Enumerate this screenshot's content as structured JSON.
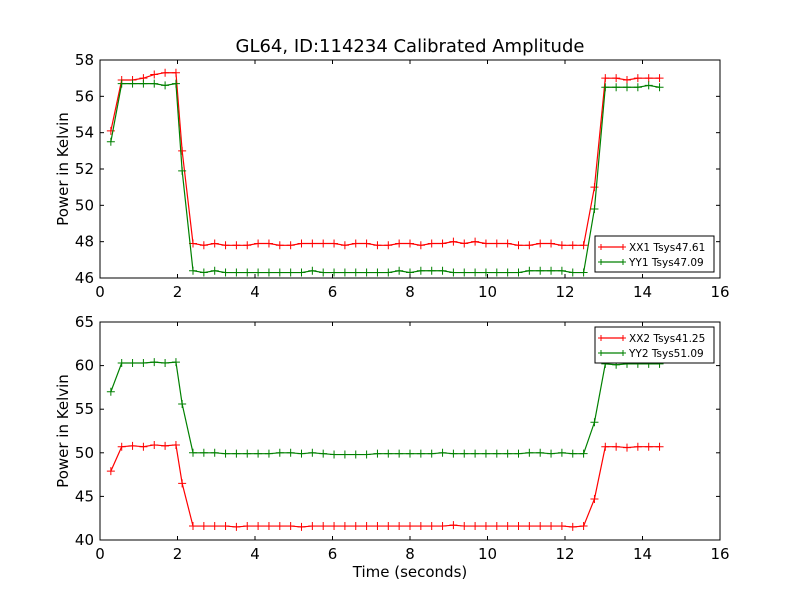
{
  "title": "GL64, ID:114234 Calibrated Amplitude",
  "colors": {
    "xx": "#ff0000",
    "yy": "#008000"
  },
  "chart_data": [
    {
      "type": "line",
      "xlabel": "",
      "ylabel": "Power in Kelvin",
      "xlim": [
        0,
        16
      ],
      "ylim": [
        46,
        58
      ],
      "xticks": [
        0,
        2,
        4,
        6,
        8,
        10,
        12,
        14,
        16
      ],
      "yticks": [
        46,
        48,
        50,
        52,
        54,
        56,
        58
      ],
      "legend_position": "lower-right",
      "series": [
        {
          "name": "XX1 Tsys47.61",
          "color": "#ff0000",
          "x": [
            0.28,
            0.56,
            0.84,
            1.12,
            1.4,
            1.68,
            1.96,
            2.12,
            2.4,
            2.68,
            2.96,
            3.24,
            3.52,
            3.8,
            4.08,
            4.36,
            4.64,
            4.92,
            5.2,
            5.48,
            5.76,
            6.04,
            6.32,
            6.6,
            6.88,
            7.16,
            7.44,
            7.72,
            8.0,
            8.28,
            8.56,
            8.84,
            9.12,
            9.4,
            9.68,
            9.96,
            10.24,
            10.52,
            10.8,
            11.08,
            11.36,
            11.64,
            11.92,
            12.2,
            12.48,
            12.76,
            13.04,
            13.32,
            13.6,
            13.88,
            14.16,
            14.44
          ],
          "y": [
            54.1,
            56.9,
            56.9,
            57.0,
            57.2,
            57.3,
            57.3,
            53.0,
            47.9,
            47.8,
            47.9,
            47.8,
            47.8,
            47.8,
            47.9,
            47.9,
            47.8,
            47.8,
            47.9,
            47.9,
            47.9,
            47.9,
            47.8,
            47.9,
            47.9,
            47.8,
            47.8,
            47.9,
            47.9,
            47.8,
            47.9,
            47.9,
            48.0,
            47.9,
            48.0,
            47.9,
            47.9,
            47.9,
            47.8,
            47.8,
            47.9,
            47.9,
            47.8,
            47.8,
            47.8,
            51.0,
            57.0,
            57.0,
            56.9,
            57.0,
            57.0,
            57.0
          ]
        },
        {
          "name": "YY1 Tsys47.09",
          "color": "#008000",
          "x": [
            0.28,
            0.56,
            0.84,
            1.12,
            1.4,
            1.68,
            1.96,
            2.12,
            2.4,
            2.68,
            2.96,
            3.24,
            3.52,
            3.8,
            4.08,
            4.36,
            4.64,
            4.92,
            5.2,
            5.48,
            5.76,
            6.04,
            6.32,
            6.6,
            6.88,
            7.16,
            7.44,
            7.72,
            8.0,
            8.28,
            8.56,
            8.84,
            9.12,
            9.4,
            9.68,
            9.96,
            10.24,
            10.52,
            10.8,
            11.08,
            11.36,
            11.64,
            11.92,
            12.2,
            12.48,
            12.76,
            13.04,
            13.32,
            13.6,
            13.88,
            14.16,
            14.44
          ],
          "y": [
            53.5,
            56.7,
            56.7,
            56.7,
            56.7,
            56.6,
            56.7,
            51.9,
            46.4,
            46.3,
            46.4,
            46.3,
            46.3,
            46.3,
            46.3,
            46.3,
            46.3,
            46.3,
            46.3,
            46.4,
            46.3,
            46.3,
            46.3,
            46.3,
            46.3,
            46.3,
            46.3,
            46.4,
            46.3,
            46.4,
            46.4,
            46.4,
            46.3,
            46.3,
            46.3,
            46.3,
            46.3,
            46.3,
            46.3,
            46.4,
            46.4,
            46.4,
            46.4,
            46.3,
            46.3,
            49.8,
            56.5,
            56.5,
            56.5,
            56.5,
            56.6,
            56.5
          ]
        }
      ]
    },
    {
      "type": "line",
      "xlabel": "Time (seconds)",
      "ylabel": "Power in Kelvin",
      "xlim": [
        0,
        16
      ],
      "ylim": [
        40,
        65
      ],
      "xticks": [
        0,
        2,
        4,
        6,
        8,
        10,
        12,
        14,
        16
      ],
      "yticks": [
        40,
        45,
        50,
        55,
        60,
        65
      ],
      "legend_position": "upper-right",
      "series": [
        {
          "name": "XX2 Tsys41.25",
          "color": "#ff0000",
          "x": [
            0.28,
            0.56,
            0.84,
            1.12,
            1.4,
            1.68,
            1.96,
            2.12,
            2.4,
            2.68,
            2.96,
            3.24,
            3.52,
            3.8,
            4.08,
            4.36,
            4.64,
            4.92,
            5.2,
            5.48,
            5.76,
            6.04,
            6.32,
            6.6,
            6.88,
            7.16,
            7.44,
            7.72,
            8.0,
            8.28,
            8.56,
            8.84,
            9.12,
            9.4,
            9.68,
            9.96,
            10.24,
            10.52,
            10.8,
            11.08,
            11.36,
            11.64,
            11.92,
            12.2,
            12.48,
            12.76,
            13.04,
            13.32,
            13.6,
            13.88,
            14.16,
            14.44
          ],
          "y": [
            47.9,
            50.7,
            50.8,
            50.7,
            50.9,
            50.8,
            50.9,
            46.5,
            41.6,
            41.6,
            41.6,
            41.6,
            41.5,
            41.6,
            41.6,
            41.6,
            41.6,
            41.6,
            41.5,
            41.6,
            41.6,
            41.6,
            41.6,
            41.6,
            41.6,
            41.6,
            41.6,
            41.6,
            41.6,
            41.6,
            41.6,
            41.6,
            41.7,
            41.6,
            41.6,
            41.6,
            41.6,
            41.6,
            41.6,
            41.6,
            41.6,
            41.6,
            41.6,
            41.5,
            41.6,
            44.7,
            50.7,
            50.7,
            50.6,
            50.7,
            50.7,
            50.7
          ]
        },
        {
          "name": "YY2 Tsys51.09",
          "color": "#008000",
          "x": [
            0.28,
            0.56,
            0.84,
            1.12,
            1.4,
            1.68,
            1.96,
            2.12,
            2.4,
            2.68,
            2.96,
            3.24,
            3.52,
            3.8,
            4.08,
            4.36,
            4.64,
            4.92,
            5.2,
            5.48,
            5.76,
            6.04,
            6.32,
            6.6,
            6.88,
            7.16,
            7.44,
            7.72,
            8.0,
            8.28,
            8.56,
            8.84,
            9.12,
            9.4,
            9.68,
            9.96,
            10.24,
            10.52,
            10.8,
            11.08,
            11.36,
            11.64,
            11.92,
            12.2,
            12.48,
            12.76,
            13.04,
            13.32,
            13.6,
            13.88,
            14.16,
            14.44
          ],
          "y": [
            57.0,
            60.3,
            60.3,
            60.3,
            60.4,
            60.3,
            60.4,
            55.6,
            50.0,
            50.0,
            50.0,
            49.9,
            49.9,
            49.9,
            49.9,
            49.9,
            50.0,
            50.0,
            49.9,
            50.0,
            49.9,
            49.8,
            49.8,
            49.8,
            49.8,
            49.9,
            49.9,
            49.9,
            49.9,
            49.9,
            49.9,
            50.0,
            49.9,
            49.9,
            49.9,
            49.9,
            49.9,
            49.9,
            49.9,
            50.0,
            50.0,
            49.9,
            50.0,
            49.9,
            49.9,
            53.5,
            60.2,
            60.1,
            60.2,
            60.2,
            60.2,
            60.2
          ]
        }
      ]
    }
  ]
}
